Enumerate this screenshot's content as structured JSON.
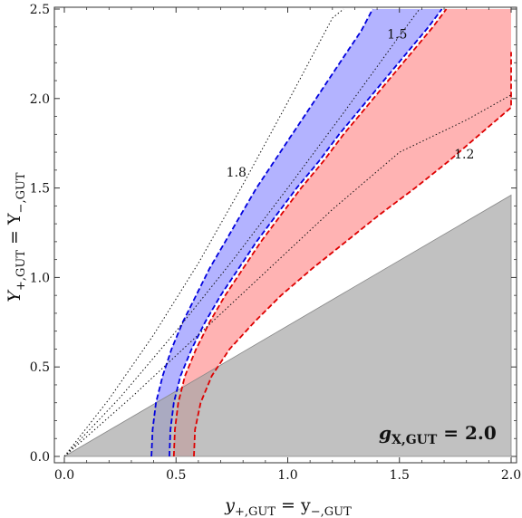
{
  "chart_data": {
    "type": "area",
    "xlim": [
      0,
      2
    ],
    "ylim": [
      0,
      2.5
    ],
    "x_ticks": [
      "0.0",
      "0.5",
      "1.0",
      "1.5",
      "2.0"
    ],
    "y_ticks": [
      "0.0",
      "0.5",
      "1.0",
      "1.5",
      "2.0",
      "2.5"
    ],
    "xlabel": {
      "base": "y",
      "sub1": "+,GUT",
      "mid": " = y",
      "sub2": "−,GUT"
    },
    "ylabel": {
      "base": "Y",
      "sub1": "+,GUT",
      "mid": " = Y",
      "sub2": "−,GUT"
    },
    "panel_label": {
      "base": "g",
      "sub": "X,GUT",
      "tail": " = 2.0"
    },
    "gray_region": [
      [
        0,
        0
      ],
      [
        2.0,
        1.46
      ],
      [
        2.0,
        0
      ]
    ],
    "series": [
      {
        "color": "#0000dd",
        "fill": "#b3b3ff",
        "outer": [
          [
            0.39,
            0.0
          ],
          [
            0.395,
            0.15
          ],
          [
            0.41,
            0.3
          ],
          [
            0.44,
            0.45
          ],
          [
            0.48,
            0.6
          ],
          [
            0.53,
            0.75
          ],
          [
            0.59,
            0.9
          ],
          [
            0.65,
            1.05
          ],
          [
            0.72,
            1.2
          ],
          [
            0.79,
            1.35
          ],
          [
            0.86,
            1.5
          ],
          [
            0.94,
            1.65
          ],
          [
            1.02,
            1.8
          ],
          [
            1.1,
            1.95
          ],
          [
            1.18,
            2.1
          ],
          [
            1.26,
            2.25
          ],
          [
            1.33,
            2.38
          ],
          [
            1.38,
            2.5
          ]
        ],
        "inner": [
          [
            0.47,
            0.0
          ],
          [
            0.475,
            0.15
          ],
          [
            0.49,
            0.3
          ],
          [
            0.52,
            0.45
          ],
          [
            0.57,
            0.6
          ],
          [
            0.63,
            0.75
          ],
          [
            0.7,
            0.9
          ],
          [
            0.78,
            1.05
          ],
          [
            0.86,
            1.2
          ],
          [
            0.95,
            1.35
          ],
          [
            1.04,
            1.5
          ],
          [
            1.14,
            1.65
          ],
          [
            1.23,
            1.8
          ],
          [
            1.33,
            1.95
          ],
          [
            1.43,
            2.1
          ],
          [
            1.53,
            2.25
          ],
          [
            1.63,
            2.4
          ],
          [
            1.69,
            2.5
          ]
        ]
      },
      {
        "color": "#dd0000",
        "fill": "#ffb3b3",
        "outer": [
          [
            0.49,
            0.0
          ],
          [
            0.495,
            0.15
          ],
          [
            0.51,
            0.3
          ],
          [
            0.54,
            0.45
          ],
          [
            0.59,
            0.6
          ],
          [
            0.65,
            0.75
          ],
          [
            0.72,
            0.9
          ],
          [
            0.8,
            1.05
          ],
          [
            0.88,
            1.2
          ],
          [
            0.97,
            1.35
          ],
          [
            1.06,
            1.5
          ],
          [
            1.16,
            1.65
          ],
          [
            1.25,
            1.8
          ],
          [
            1.35,
            1.95
          ],
          [
            1.45,
            2.1
          ],
          [
            1.55,
            2.25
          ],
          [
            1.65,
            2.4
          ],
          [
            1.71,
            2.5
          ]
        ],
        "inner": [
          [
            0.58,
            0.0
          ],
          [
            0.585,
            0.15
          ],
          [
            0.61,
            0.3
          ],
          [
            0.66,
            0.45
          ],
          [
            0.74,
            0.6
          ],
          [
            0.85,
            0.75
          ],
          [
            0.97,
            0.9
          ],
          [
            1.11,
            1.05
          ],
          [
            1.26,
            1.2
          ],
          [
            1.41,
            1.35
          ],
          [
            1.57,
            1.5
          ],
          [
            1.72,
            1.65
          ],
          [
            1.86,
            1.8
          ],
          [
            2.0,
            1.95
          ],
          [
            2.0,
            2.5
          ]
        ],
        "inner_stop": 2.26
      }
    ],
    "contours": [
      {
        "label": "1.8",
        "label_at": [
          0.77,
          1.59
        ],
        "points": [
          [
            0,
            0
          ],
          [
            0.2,
            0.32
          ],
          [
            0.4,
            0.68
          ],
          [
            0.6,
            1.08
          ],
          [
            0.8,
            1.52
          ],
          [
            1.0,
            1.98
          ],
          [
            1.2,
            2.45
          ],
          [
            1.25,
            2.5
          ]
        ]
      },
      {
        "label": "1.5",
        "label_at": [
          1.49,
          2.36
        ],
        "points": [
          [
            0,
            0
          ],
          [
            0.25,
            0.33
          ],
          [
            0.5,
            0.7
          ],
          [
            0.75,
            1.09
          ],
          [
            1.0,
            1.5
          ],
          [
            1.25,
            1.92
          ],
          [
            1.5,
            2.35
          ],
          [
            1.59,
            2.5
          ]
        ]
      },
      {
        "label": "1.2",
        "label_at": [
          1.79,
          1.69
        ],
        "points": [
          [
            0,
            0
          ],
          [
            0.3,
            0.33
          ],
          [
            0.6,
            0.68
          ],
          [
            0.9,
            1.03
          ],
          [
            1.2,
            1.38
          ],
          [
            1.5,
            1.7
          ],
          [
            1.8,
            1.88
          ],
          [
            2.0,
            2.02
          ]
        ]
      }
    ]
  }
}
